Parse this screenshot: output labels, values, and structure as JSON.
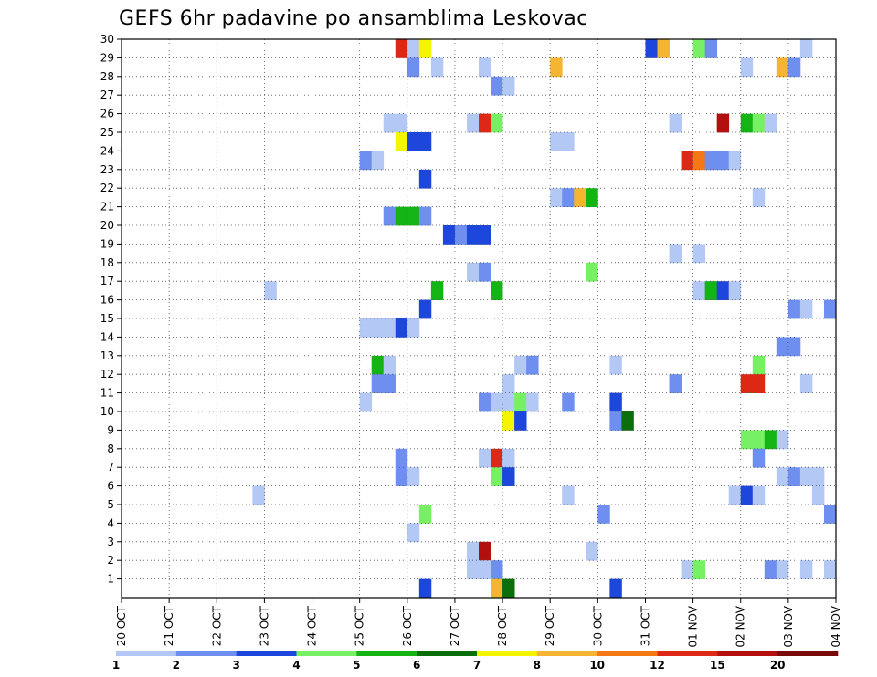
{
  "chart_data": {
    "type": "heatmap",
    "title": "GEFS 6hr padavine po ansamblima Leskovac",
    "xlabel": "",
    "ylabel": "",
    "x_tick_labels": [
      "20 OCT",
      "21 OCT",
      "22 OCT",
      "23 OCT",
      "24 OCT",
      "25 OCT",
      "26 OCT",
      "27 OCT",
      "28 OCT",
      "29 OCT",
      "30 OCT",
      "31 OCT",
      "01 NOV",
      "02 NOV",
      "03 NOV",
      "04 NOV"
    ],
    "y_tick_labels": [
      "1",
      "2",
      "3",
      "4",
      "5",
      "6",
      "7",
      "8",
      "9",
      "10",
      "11",
      "12",
      "13",
      "14",
      "15",
      "16",
      "17",
      "18",
      "19",
      "20",
      "21",
      "22",
      "23",
      "24",
      "25",
      "26",
      "27",
      "28",
      "29",
      "30"
    ],
    "xlim": [
      0,
      60
    ],
    "ylim": [
      0,
      30
    ],
    "x_unit_note": "6-hour steps from 20 OCT 00Z; 4 steps per day",
    "grid": true,
    "legend": {
      "position": "bottom",
      "labels": [
        "1",
        "2",
        "3",
        "4",
        "5",
        "6",
        "7",
        "8",
        "10",
        "12",
        "15",
        "20"
      ],
      "colors": [
        "#b4c8f5",
        "#6e8ff0",
        "#1c46dc",
        "#78f064",
        "#14b414",
        "#0a6e0a",
        "#f5f500",
        "#f5b432",
        "#f57814",
        "#dc2814",
        "#b40f0f",
        "#780a0a"
      ]
    },
    "cells": [
      {
        "m": 30,
        "t": 24,
        "c": 10
      },
      {
        "m": 30,
        "t": 25,
        "c": 1
      },
      {
        "m": 30,
        "t": 26,
        "c": 7
      },
      {
        "m": 30,
        "t": 45,
        "c": 3
      },
      {
        "m": 30,
        "t": 46,
        "c": 8
      },
      {
        "m": 30,
        "t": 49,
        "c": 4
      },
      {
        "m": 30,
        "t": 50,
        "c": 2
      },
      {
        "m": 30,
        "t": 58,
        "c": 1
      },
      {
        "m": 29,
        "t": 25,
        "c": 2
      },
      {
        "m": 29,
        "t": 27,
        "c": 1
      },
      {
        "m": 29,
        "t": 31,
        "c": 1
      },
      {
        "m": 29,
        "t": 37,
        "c": 8
      },
      {
        "m": 29,
        "t": 53,
        "c": 1
      },
      {
        "m": 29,
        "t": 56,
        "c": 8
      },
      {
        "m": 29,
        "t": 57,
        "c": 2
      },
      {
        "m": 28,
        "t": 32,
        "c": 2
      },
      {
        "m": 28,
        "t": 33,
        "c": 1
      },
      {
        "m": 26,
        "t": 23,
        "c": 1
      },
      {
        "m": 26,
        "t": 24,
        "c": 1
      },
      {
        "m": 26,
        "t": 30,
        "c": 1
      },
      {
        "m": 26,
        "t": 31,
        "c": 10
      },
      {
        "m": 26,
        "t": 32,
        "c": 4
      },
      {
        "m": 26,
        "t": 47,
        "c": 1
      },
      {
        "m": 26,
        "t": 51,
        "c": 11
      },
      {
        "m": 26,
        "t": 53,
        "c": 5
      },
      {
        "m": 26,
        "t": 54,
        "c": 4
      },
      {
        "m": 26,
        "t": 55,
        "c": 1
      },
      {
        "m": 25,
        "t": 24,
        "c": 7
      },
      {
        "m": 25,
        "t": 25,
        "c": 3
      },
      {
        "m": 25,
        "t": 26,
        "c": 3
      },
      {
        "m": 25,
        "t": 37,
        "c": 1
      },
      {
        "m": 25,
        "t": 38,
        "c": 1
      },
      {
        "m": 24,
        "t": 21,
        "c": 2
      },
      {
        "m": 24,
        "t": 22,
        "c": 1
      },
      {
        "m": 24,
        "t": 48,
        "c": 10
      },
      {
        "m": 24,
        "t": 49,
        "c": 9
      },
      {
        "m": 24,
        "t": 50,
        "c": 2
      },
      {
        "m": 24,
        "t": 51,
        "c": 2
      },
      {
        "m": 24,
        "t": 52,
        "c": 1
      },
      {
        "m": 23,
        "t": 26,
        "c": 3
      },
      {
        "m": 22,
        "t": 37,
        "c": 1
      },
      {
        "m": 22,
        "t": 38,
        "c": 2
      },
      {
        "m": 22,
        "t": 39,
        "c": 8
      },
      {
        "m": 22,
        "t": 40,
        "c": 5
      },
      {
        "m": 22,
        "t": 54,
        "c": 1
      },
      {
        "m": 21,
        "t": 23,
        "c": 2
      },
      {
        "m": 21,
        "t": 24,
        "c": 5
      },
      {
        "m": 21,
        "t": 25,
        "c": 5
      },
      {
        "m": 21,
        "t": 26,
        "c": 2
      },
      {
        "m": 20,
        "t": 28,
        "c": 3
      },
      {
        "m": 20,
        "t": 29,
        "c": 2
      },
      {
        "m": 20,
        "t": 30,
        "c": 3
      },
      {
        "m": 20,
        "t": 31,
        "c": 3
      },
      {
        "m": 19,
        "t": 47,
        "c": 1
      },
      {
        "m": 19,
        "t": 49,
        "c": 1
      },
      {
        "m": 18,
        "t": 30,
        "c": 1
      },
      {
        "m": 18,
        "t": 31,
        "c": 2
      },
      {
        "m": 18,
        "t": 40,
        "c": 4
      },
      {
        "m": 17,
        "t": 13,
        "c": 1
      },
      {
        "m": 17,
        "t": 27,
        "c": 5
      },
      {
        "m": 17,
        "t": 32,
        "c": 5
      },
      {
        "m": 17,
        "t": 49,
        "c": 1
      },
      {
        "m": 17,
        "t": 50,
        "c": 5
      },
      {
        "m": 17,
        "t": 51,
        "c": 3
      },
      {
        "m": 17,
        "t": 52,
        "c": 1
      },
      {
        "m": 16,
        "t": 26,
        "c": 3
      },
      {
        "m": 16,
        "t": 57,
        "c": 2
      },
      {
        "m": 16,
        "t": 58,
        "c": 1
      },
      {
        "m": 16,
        "t": 60,
        "c": 2
      },
      {
        "m": 15,
        "t": 21,
        "c": 1
      },
      {
        "m": 15,
        "t": 22,
        "c": 1
      },
      {
        "m": 15,
        "t": 23,
        "c": 1
      },
      {
        "m": 15,
        "t": 24,
        "c": 3
      },
      {
        "m": 15,
        "t": 25,
        "c": 1
      },
      {
        "m": 14,
        "t": 56,
        "c": 2
      },
      {
        "m": 14,
        "t": 57,
        "c": 2
      },
      {
        "m": 13,
        "t": 22,
        "c": 5
      },
      {
        "m": 13,
        "t": 23,
        "c": 1
      },
      {
        "m": 13,
        "t": 34,
        "c": 1
      },
      {
        "m": 13,
        "t": 35,
        "c": 2
      },
      {
        "m": 13,
        "t": 42,
        "c": 1
      },
      {
        "m": 13,
        "t": 54,
        "c": 4
      },
      {
        "m": 12,
        "t": 22,
        "c": 2
      },
      {
        "m": 12,
        "t": 23,
        "c": 2
      },
      {
        "m": 12,
        "t": 33,
        "c": 1
      },
      {
        "m": 12,
        "t": 47,
        "c": 2
      },
      {
        "m": 12,
        "t": 53,
        "c": 10
      },
      {
        "m": 12,
        "t": 54,
        "c": 10
      },
      {
        "m": 12,
        "t": 58,
        "c": 1
      },
      {
        "m": 11,
        "t": 21,
        "c": 1
      },
      {
        "m": 11,
        "t": 31,
        "c": 2
      },
      {
        "m": 11,
        "t": 32,
        "c": 1
      },
      {
        "m": 11,
        "t": 33,
        "c": 1
      },
      {
        "m": 11,
        "t": 34,
        "c": 4
      },
      {
        "m": 11,
        "t": 35,
        "c": 1
      },
      {
        "m": 11,
        "t": 38,
        "c": 2
      },
      {
        "m": 11,
        "t": 42,
        "c": 3
      },
      {
        "m": 10,
        "t": 33,
        "c": 7
      },
      {
        "m": 10,
        "t": 34,
        "c": 3
      },
      {
        "m": 10,
        "t": 42,
        "c": 2
      },
      {
        "m": 10,
        "t": 43,
        "c": 6
      },
      {
        "m": 9,
        "t": 53,
        "c": 4
      },
      {
        "m": 9,
        "t": 54,
        "c": 4
      },
      {
        "m": 9,
        "t": 55,
        "c": 5
      },
      {
        "m": 9,
        "t": 56,
        "c": 1
      },
      {
        "m": 8,
        "t": 24,
        "c": 2
      },
      {
        "m": 8,
        "t": 31,
        "c": 1
      },
      {
        "m": 8,
        "t": 32,
        "c": 10
      },
      {
        "m": 8,
        "t": 33,
        "c": 1
      },
      {
        "m": 8,
        "t": 54,
        "c": 2
      },
      {
        "m": 7,
        "t": 24,
        "c": 2
      },
      {
        "m": 7,
        "t": 25,
        "c": 1
      },
      {
        "m": 7,
        "t": 32,
        "c": 4
      },
      {
        "m": 7,
        "t": 33,
        "c": 3
      },
      {
        "m": 7,
        "t": 56,
        "c": 1
      },
      {
        "m": 7,
        "t": 57,
        "c": 2
      },
      {
        "m": 7,
        "t": 58,
        "c": 1
      },
      {
        "m": 7,
        "t": 59,
        "c": 1
      },
      {
        "m": 6,
        "t": 12,
        "c": 1
      },
      {
        "m": 6,
        "t": 38,
        "c": 1
      },
      {
        "m": 6,
        "t": 52,
        "c": 1
      },
      {
        "m": 6,
        "t": 53,
        "c": 3
      },
      {
        "m": 6,
        "t": 54,
        "c": 1
      },
      {
        "m": 6,
        "t": 59,
        "c": 1
      },
      {
        "m": 5,
        "t": 26,
        "c": 4
      },
      {
        "m": 5,
        "t": 41,
        "c": 2
      },
      {
        "m": 5,
        "t": 60,
        "c": 2
      },
      {
        "m": 4,
        "t": 25,
        "c": 1
      },
      {
        "m": 3,
        "t": 30,
        "c": 1
      },
      {
        "m": 3,
        "t": 31,
        "c": 11
      },
      {
        "m": 3,
        "t": 40,
        "c": 1
      },
      {
        "m": 2,
        "t": 30,
        "c": 1
      },
      {
        "m": 2,
        "t": 31,
        "c": 1
      },
      {
        "m": 2,
        "t": 32,
        "c": 2
      },
      {
        "m": 2,
        "t": 48,
        "c": 1
      },
      {
        "m": 2,
        "t": 49,
        "c": 4
      },
      {
        "m": 2,
        "t": 55,
        "c": 2
      },
      {
        "m": 2,
        "t": 56,
        "c": 1
      },
      {
        "m": 2,
        "t": 58,
        "c": 1
      },
      {
        "m": 2,
        "t": 60,
        "c": 1
      },
      {
        "m": 1,
        "t": 26,
        "c": 3
      },
      {
        "m": 1,
        "t": 32,
        "c": 8
      },
      {
        "m": 1,
        "t": 33,
        "c": 6
      },
      {
        "m": 1,
        "t": 42,
        "c": 3
      }
    ]
  }
}
